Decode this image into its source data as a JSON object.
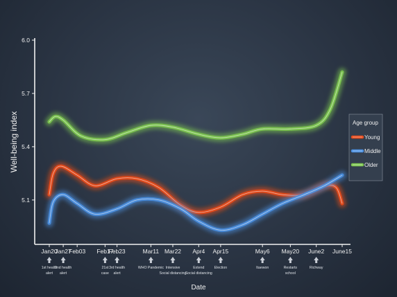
{
  "chart_data": {
    "type": "line",
    "xlabel": "Date",
    "ylabel": "Well-being index",
    "ylim": [
      4.85,
      6.0
    ],
    "yticks": [
      5.1,
      5.4,
      5.7,
      6.0
    ],
    "ytick_labels": [
      "5.1",
      "5.4",
      "5.7",
      "6.0"
    ],
    "x_start": "2020-01-20",
    "x_end": "2020-06-15",
    "xticks": [
      {
        "date": "2020-01-20",
        "label": "Jan20"
      },
      {
        "date": "2020-01-27",
        "label": "Jan27"
      },
      {
        "date": "2020-02-03",
        "label": "Feb03"
      },
      {
        "date": "2020-02-17",
        "label": "Feb17"
      },
      {
        "date": "2020-02-23",
        "label": "Feb23"
      },
      {
        "date": "2020-03-11",
        "label": "Mar11"
      },
      {
        "date": "2020-03-22",
        "label": "Mar22"
      },
      {
        "date": "2020-04-04",
        "label": "Apr4"
      },
      {
        "date": "2020-04-15",
        "label": "Apr15"
      },
      {
        "date": "2020-05-06",
        "label": "May6"
      },
      {
        "date": "2020-05-20",
        "label": "May20"
      },
      {
        "date": "2020-06-02",
        "label": "June2"
      },
      {
        "date": "2020-06-15",
        "label": "June15"
      }
    ],
    "annotations": [
      {
        "date": "2020-01-20",
        "lines": [
          "1st health",
          "alert"
        ]
      },
      {
        "date": "2020-01-27",
        "lines": [
          "2nd health",
          "alert"
        ]
      },
      {
        "date": "2020-02-17",
        "lines": [
          "21st",
          "case"
        ]
      },
      {
        "date": "2020-02-23",
        "lines": [
          "3rd health",
          "alert"
        ]
      },
      {
        "date": "2020-03-11",
        "lines": [
          "WHO Pandemic"
        ]
      },
      {
        "date": "2020-03-22",
        "lines": [
          "Intensive",
          "Social distancing"
        ]
      },
      {
        "date": "2020-04-04",
        "lines": [
          "Extend",
          "Social distancing"
        ]
      },
      {
        "date": "2020-04-15",
        "lines": [
          "Election"
        ]
      },
      {
        "date": "2020-05-06",
        "lines": [
          "Itaewon"
        ]
      },
      {
        "date": "2020-05-20",
        "lines": [
          "Restarts",
          "school"
        ]
      },
      {
        "date": "2020-06-02",
        "lines": [
          "Richway"
        ]
      }
    ],
    "legend": {
      "title": "Age group",
      "position": "right"
    },
    "series": [
      {
        "name": "Young",
        "color": "#e84a1a",
        "x": [
          "2020-01-20",
          "2020-01-22",
          "2020-01-26",
          "2020-02-03",
          "2020-02-12",
          "2020-02-23",
          "2020-03-04",
          "2020-03-15",
          "2020-03-26",
          "2020-04-04",
          "2020-04-15",
          "2020-04-26",
          "2020-05-06",
          "2020-05-16",
          "2020-05-27",
          "2020-06-06",
          "2020-06-12",
          "2020-06-15"
        ],
        "y": [
          5.13,
          5.25,
          5.29,
          5.24,
          5.18,
          5.22,
          5.22,
          5.17,
          5.07,
          5.03,
          5.06,
          5.13,
          5.15,
          5.13,
          5.13,
          5.18,
          5.17,
          5.08
        ]
      },
      {
        "name": "Middle",
        "color": "#4a8fe0",
        "x": [
          "2020-01-20",
          "2020-01-22",
          "2020-01-27",
          "2020-02-03",
          "2020-02-12",
          "2020-02-23",
          "2020-03-04",
          "2020-03-15",
          "2020-03-26",
          "2020-04-04",
          "2020-04-15",
          "2020-04-26",
          "2020-05-06",
          "2020-05-16",
          "2020-05-27",
          "2020-06-06",
          "2020-06-15"
        ],
        "y": [
          4.97,
          5.09,
          5.13,
          5.08,
          5.02,
          5.05,
          5.1,
          5.1,
          5.05,
          4.98,
          4.93,
          4.96,
          5.02,
          5.08,
          5.13,
          5.18,
          5.24
        ]
      },
      {
        "name": "Older",
        "color": "#7ec850",
        "x": [
          "2020-01-20",
          "2020-01-23",
          "2020-01-27",
          "2020-02-05",
          "2020-02-17",
          "2020-02-28",
          "2020-03-11",
          "2020-03-22",
          "2020-04-04",
          "2020-04-15",
          "2020-04-26",
          "2020-05-06",
          "2020-05-20",
          "2020-06-02",
          "2020-06-09",
          "2020-06-15"
        ],
        "y": [
          5.54,
          5.57,
          5.55,
          5.46,
          5.44,
          5.48,
          5.52,
          5.51,
          5.47,
          5.45,
          5.47,
          5.5,
          5.5,
          5.52,
          5.61,
          5.82
        ]
      }
    ]
  }
}
